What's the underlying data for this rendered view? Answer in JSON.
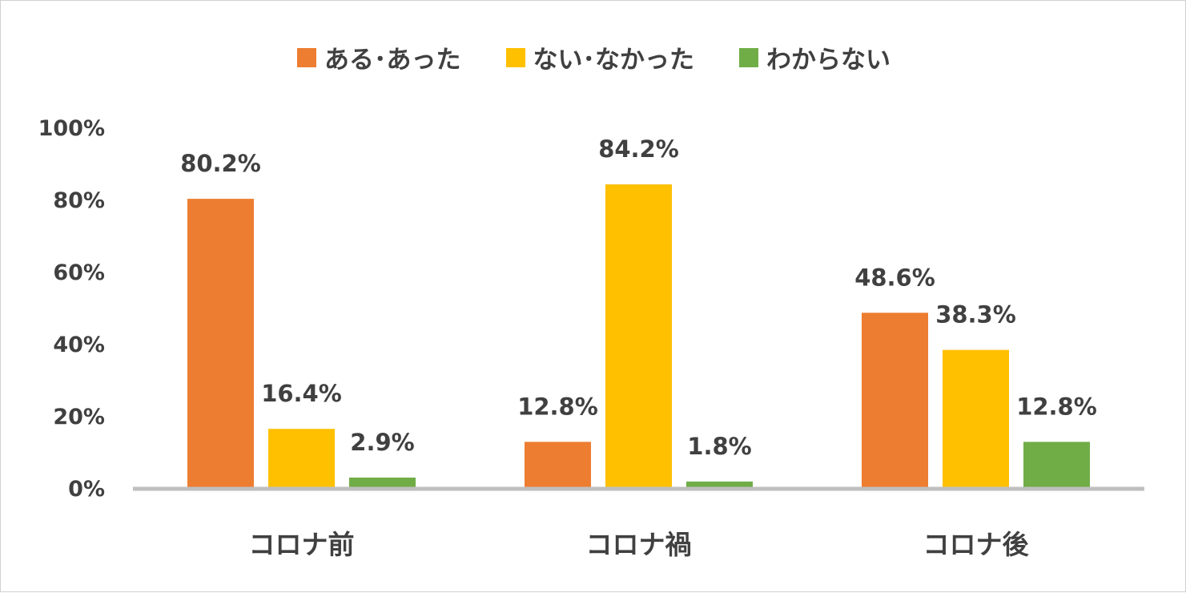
{
  "chart_data": {
    "type": "bar",
    "title": "",
    "xlabel": "",
    "ylabel": "",
    "categories": [
      "コロナ前",
      "コロナ禍",
      "コロナ後"
    ],
    "series": [
      {
        "name": "ある･あった",
        "color": "#ED7D31",
        "values": [
          80.2,
          12.8,
          48.6
        ],
        "labels": [
          "80.2%",
          "12.8%",
          "48.6%"
        ]
      },
      {
        "name": "ない･なかった",
        "color": "#FFC000",
        "values": [
          16.4,
          84.2,
          38.3
        ],
        "labels": [
          "16.4%",
          "84.2%",
          "38.3%"
        ]
      },
      {
        "name": "わからない",
        "color": "#70AD47",
        "values": [
          2.9,
          1.8,
          12.8
        ],
        "labels": [
          "2.9%",
          "1.8%",
          "12.8%"
        ]
      }
    ],
    "ylim": [
      0,
      100
    ],
    "yticks": [
      "0%",
      "20%",
      "40%",
      "60%",
      "80%",
      "100%"
    ],
    "legend": "top",
    "grid": false
  }
}
